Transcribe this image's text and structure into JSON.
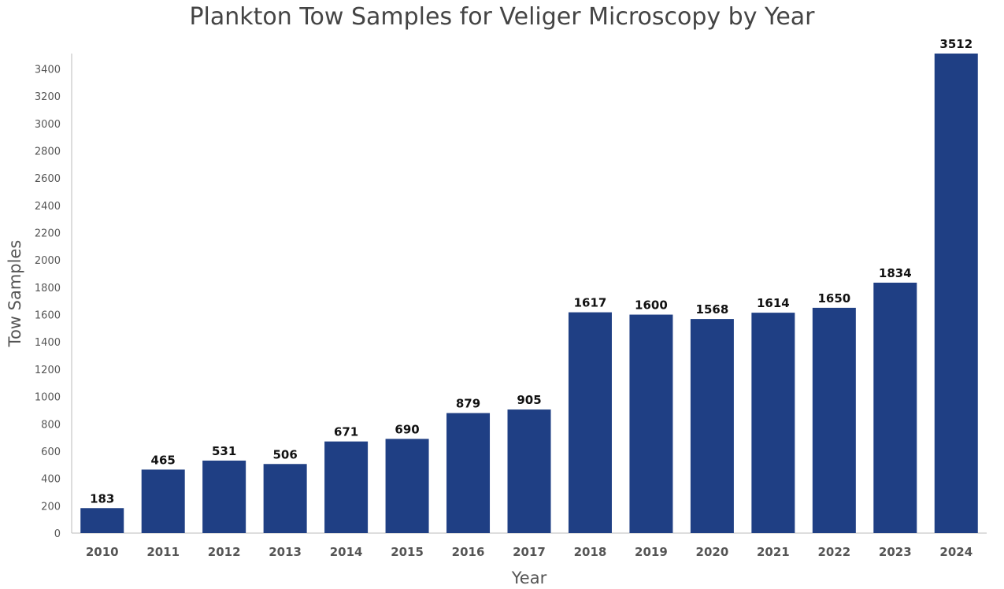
{
  "chart_data": {
    "type": "bar",
    "title": "Plankton Tow Samples for Veliger Microscopy by Year",
    "xlabel": "Year",
    "ylabel": "Tow Samples",
    "categories": [
      "2010",
      "2011",
      "2012",
      "2013",
      "2014",
      "2015",
      "2016",
      "2017",
      "2018",
      "2019",
      "2020",
      "2021",
      "2022",
      "2023",
      "2024"
    ],
    "values": [
      183,
      465,
      531,
      506,
      671,
      690,
      879,
      905,
      1617,
      1600,
      1568,
      1614,
      1650,
      1834,
      3512
    ],
    "data_labels": [
      "183",
      "465",
      "531",
      "506",
      "671",
      "690",
      "879",
      "905",
      "1617",
      "1600",
      "1568",
      "1614",
      "1650",
      "1834",
      "3512"
    ],
    "ylim": [
      0,
      3512
    ],
    "yticks": [
      "0",
      "200",
      "400",
      "600",
      "800",
      "1000",
      "1200",
      "1400",
      "1600",
      "1800",
      "2000",
      "2200",
      "2400",
      "2600",
      "2800",
      "3000",
      "3200",
      "3400"
    ],
    "grid": false,
    "legend": "none",
    "bar_color": "#1f3f84"
  }
}
